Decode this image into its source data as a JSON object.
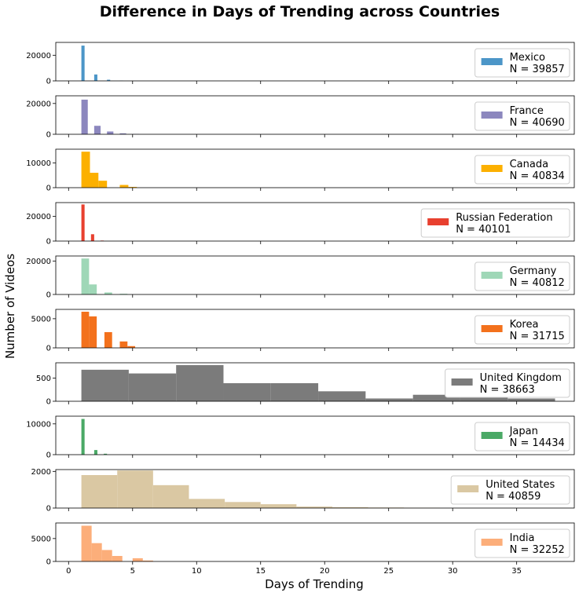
{
  "figure": {
    "title": "Difference in Days of Trending across Countries",
    "xlabel": "Days of Trending",
    "ylabel": "Number of Videos"
  },
  "chart_data": [
    {
      "type": "bar",
      "name": "Mexico",
      "legend": [
        "Mexico",
        "N = 39857"
      ],
      "color": "#4c96c8",
      "ylim": [
        0,
        30000
      ],
      "yticks": [
        0,
        20000
      ],
      "bins": [
        [
          1,
          1.25,
          27500
        ],
        [
          2,
          2.25,
          5000
        ],
        [
          3,
          3.25,
          900
        ],
        [
          4,
          4.25,
          150
        ]
      ],
      "xticks_labels": false
    },
    {
      "type": "bar",
      "name": "France",
      "legend": [
        "France",
        "N = 40690"
      ],
      "color": "#8c87be",
      "ylim": [
        0,
        25000
      ],
      "yticks": [
        0,
        20000
      ],
      "bins": [
        [
          1,
          1.5,
          22500
        ],
        [
          2,
          2.5,
          5500
        ],
        [
          3,
          3.5,
          1800
        ],
        [
          4,
          4.5,
          600
        ],
        [
          5,
          5.5,
          150
        ]
      ],
      "xticks_labels": false
    },
    {
      "type": "bar",
      "name": "Canada",
      "legend": [
        "Canada",
        "N = 40834"
      ],
      "color": "#fcb000",
      "ylim": [
        0,
        15500
      ],
      "yticks": [
        0,
        10000
      ],
      "bins": [
        [
          1,
          1.67,
          14500
        ],
        [
          1.67,
          2.33,
          6000
        ],
        [
          2.33,
          3,
          2800
        ],
        [
          4,
          4.67,
          1100
        ],
        [
          4.67,
          5.33,
          300
        ]
      ],
      "xticks_labels": false
    },
    {
      "type": "bar",
      "name": "Russian Federation",
      "legend": [
        "Russian Federation",
        "N = 40101"
      ],
      "color": "#e8402f",
      "ylim": [
        0,
        31000
      ],
      "yticks": [
        0,
        20000
      ],
      "bins": [
        [
          1,
          1.25,
          29500
        ],
        [
          1.75,
          2,
          5500
        ],
        [
          2.5,
          2.75,
          400
        ]
      ],
      "xticks_labels": false
    },
    {
      "type": "bar",
      "name": "Germany",
      "legend": [
        "Germany",
        "N = 40812"
      ],
      "color": "#9fd7b7",
      "ylim": [
        0,
        23000
      ],
      "yticks": [
        0,
        20000
      ],
      "bins": [
        [
          1,
          1.6,
          21500
        ],
        [
          1.6,
          2.2,
          6000
        ],
        [
          2.8,
          3.4,
          1200
        ],
        [
          4,
          4.6,
          400
        ]
      ],
      "xticks_labels": false
    },
    {
      "type": "bar",
      "name": "Korea",
      "legend": [
        "Korea",
        "N = 31715"
      ],
      "color": "#f3711c",
      "ylim": [
        0,
        6600
      ],
      "yticks": [
        0,
        5000
      ],
      "bins": [
        [
          1,
          1.6,
          6200
        ],
        [
          1.6,
          2.2,
          5400
        ],
        [
          2.8,
          3.4,
          2700
        ],
        [
          4,
          4.6,
          1100
        ],
        [
          4.6,
          5.2,
          300
        ]
      ],
      "xticks_labels": false
    },
    {
      "type": "bar",
      "name": "United Kingdom",
      "legend": [
        "United Kingdom",
        "N = 38663"
      ],
      "color": "#7b7b7b",
      "ylim": [
        0,
        830
      ],
      "yticks": [
        0,
        500
      ],
      "bins": [
        [
          1,
          4.7,
          680
        ],
        [
          4.7,
          8.4,
          600
        ],
        [
          8.4,
          12.1,
          780
        ],
        [
          12.1,
          15.8,
          390
        ],
        [
          15.8,
          19.5,
          390
        ],
        [
          19.5,
          23.2,
          215
        ],
        [
          23.2,
          26.9,
          60
        ],
        [
          26.9,
          30.6,
          140
        ],
        [
          30.6,
          34.3,
          100
        ],
        [
          34.3,
          38,
          60
        ]
      ],
      "xticks_labels": false
    },
    {
      "type": "bar",
      "name": "Japan",
      "legend": [
        "Japan",
        "N = 14434"
      ],
      "color": "#4aa966",
      "ylim": [
        0,
        12500
      ],
      "yticks": [
        0,
        10000
      ],
      "bins": [
        [
          1,
          1.25,
          11600
        ],
        [
          2,
          2.25,
          1500
        ],
        [
          2.75,
          3,
          300
        ]
      ],
      "xticks_labels": false
    },
    {
      "type": "bar",
      "name": "United States",
      "legend": [
        "United States",
        "N = 40859"
      ],
      "color": "#dac8a3",
      "ylim": [
        0,
        2100
      ],
      "yticks": [
        0,
        2000
      ],
      "bins": [
        [
          1,
          3.8,
          1800
        ],
        [
          3.8,
          6.6,
          2050
        ],
        [
          6.6,
          9.4,
          1250
        ],
        [
          9.4,
          12.2,
          500
        ],
        [
          12.2,
          15,
          330
        ],
        [
          15,
          17.8,
          210
        ],
        [
          17.8,
          20.6,
          80
        ],
        [
          20.6,
          23.4,
          50
        ],
        [
          23.4,
          26.2,
          30
        ],
        [
          26.2,
          29,
          20
        ]
      ],
      "xticks_labels": false
    },
    {
      "type": "bar",
      "name": "India",
      "legend": [
        "India",
        "N = 32252"
      ],
      "color": "#fcae7a",
      "ylim": [
        0,
        8400
      ],
      "yticks": [
        0,
        5000
      ],
      "bins": [
        [
          1,
          1.8,
          7800
        ],
        [
          1.8,
          2.6,
          4000
        ],
        [
          2.6,
          3.4,
          2500
        ],
        [
          3.4,
          4.2,
          1200
        ],
        [
          5,
          5.8,
          700
        ],
        [
          5.8,
          6.6,
          200
        ]
      ],
      "xticks_labels": true
    }
  ],
  "xaxis": {
    "range": [
      -1,
      39.5
    ],
    "ticks": [
      0,
      5,
      10,
      15,
      20,
      25,
      30,
      35
    ]
  }
}
